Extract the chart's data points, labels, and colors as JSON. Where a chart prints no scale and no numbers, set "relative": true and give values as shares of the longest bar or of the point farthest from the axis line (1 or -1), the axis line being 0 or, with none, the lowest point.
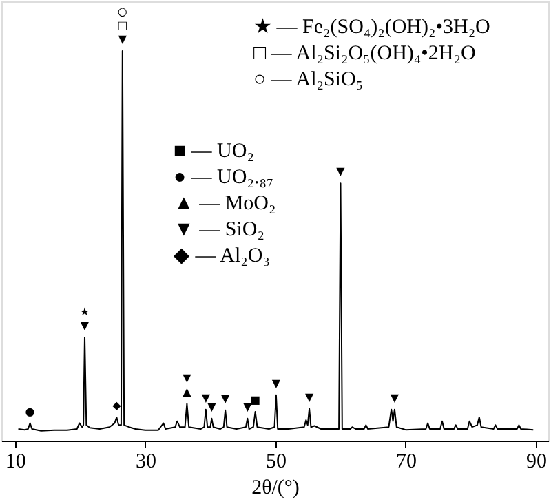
{
  "chart_data": {
    "type": "line",
    "relative": true,
    "color": "#000000",
    "marker": "none",
    "line_style": "solid",
    "grid": false,
    "xlabel": "2θ/(°)",
    "xlim": [
      7.9,
      91.9
    ],
    "xticks": [
      10,
      30,
      50,
      70,
      90
    ],
    "x": [
      10.5,
      11.5,
      12.0,
      12.3,
      12.6,
      14,
      16,
      18,
      19.5,
      19.9,
      20.3,
      20.5,
      20.7,
      20.95,
      21.5,
      23,
      24.5,
      25.3,
      25.6,
      25.9,
      26.3,
      26.5,
      26.75,
      27.5,
      28.5,
      30,
      32,
      32.8,
      33.1,
      34.6,
      34.9,
      35.3,
      36.1,
      36.4,
      36.7,
      38.5,
      39.05,
      39.3,
      39.55,
      40.0,
      40.2,
      40.45,
      41.5,
      42.05,
      42.3,
      42.55,
      44,
      45.45,
      45.7,
      45.95,
      46.6,
      46.9,
      47.2,
      49,
      49.85,
      50.1,
      50.35,
      52,
      54.4,
      54.7,
      54.95,
      55.2,
      55.45,
      56,
      57,
      59.75,
      60.0,
      60.25,
      61.5,
      61.8,
      62.3,
      63.6,
      63.9,
      64.2,
      67.4,
      67.8,
      68.05,
      68.3,
      68.6,
      70,
      73.1,
      73.4,
      73.7,
      75.3,
      75.6,
      75.9,
      77.4,
      77.7,
      78,
      79.5,
      79.8,
      80.2,
      81.0,
      81.3,
      81.6,
      83.5,
      83.8,
      84.1,
      87.1,
      87.4,
      87.7,
      89.6
    ],
    "values": [
      0.03,
      0.028,
      0.03,
      0.045,
      0.03,
      0.025,
      0.027,
      0.027,
      0.03,
      0.045,
      0.035,
      0.04,
      0.265,
      0.04,
      0.033,
      0.03,
      0.035,
      0.045,
      0.06,
      0.04,
      0.04,
      1,
      0.04,
      0.035,
      0.03,
      0.027,
      0.027,
      0.045,
      0.03,
      0.035,
      0.05,
      0.035,
      0.035,
      0.095,
      0.035,
      0.03,
      0.035,
      0.08,
      0.035,
      0.035,
      0.057,
      0.035,
      0.03,
      0.035,
      0.078,
      0.035,
      0.03,
      0.035,
      0.057,
      0.03,
      0.035,
      0.074,
      0.035,
      0.03,
      0.035,
      0.117,
      0.03,
      0.03,
      0.035,
      0.053,
      0.04,
      0.082,
      0.035,
      0.038,
      0.03,
      0.03,
      0.66,
      0.03,
      0.03,
      0.035,
      0.03,
      0.03,
      0.04,
      0.03,
      0.035,
      0.08,
      0.05,
      0.08,
      0.035,
      0.028,
      0.03,
      0.045,
      0.03,
      0.03,
      0.05,
      0.03,
      0.03,
      0.04,
      0.03,
      0.03,
      0.05,
      0.035,
      0.04,
      0.06,
      0.035,
      0.03,
      0.04,
      0.03,
      0.03,
      0.04,
      0.03,
      0.028
    ],
    "annotations": [
      "★ — Fe₂(SO₄)₂(OH)₂•3H₂O",
      "□ — Al₂Si₂O₅(OH)₄•2H₂O",
      "○ — Al₂SiO₅",
      "■ — UO₂",
      "● — UO₂.₈₇",
      "▲ — MoO₂",
      "▼ — SiO₂",
      "◆ — Al₂O₃",
      {
        "text": "●",
        "x": 12.3,
        "y": 0.045
      },
      {
        "text": "★",
        "x": 20.7,
        "y": 0.265
      },
      {
        "text": "▼",
        "x": 20.7,
        "y": 0.265
      },
      {
        "text": "◆",
        "x": 25.6,
        "y": 0.06
      },
      {
        "text": "○",
        "x": 26.5,
        "y": 1
      },
      {
        "text": "□",
        "x": 26.5,
        "y": 1
      },
      {
        "text": "▼",
        "x": 26.5,
        "y": 1
      },
      {
        "text": "▼",
        "x": 36.4,
        "y": 0.095
      },
      {
        "text": "▲",
        "x": 36.4,
        "y": 0.095
      },
      {
        "text": "▼",
        "x": 39.3,
        "y": 0.08
      },
      {
        "text": "▼",
        "x": 40.2,
        "y": 0.057
      },
      {
        "text": "▼",
        "x": 42.3,
        "y": 0.078
      },
      {
        "text": "▼",
        "x": 45.7,
        "y": 0.057
      },
      {
        "text": "■",
        "x": 46.9,
        "y": 0.074
      },
      {
        "text": "▼",
        "x": 50.1,
        "y": 0.117
      },
      {
        "text": "▼",
        "x": 55.2,
        "y": 0.082
      },
      {
        "text": "▼",
        "x": 60.0,
        "y": 0.66
      },
      {
        "text": "▼",
        "x": 68.3,
        "y": 0.08
      }
    ]
  }
}
